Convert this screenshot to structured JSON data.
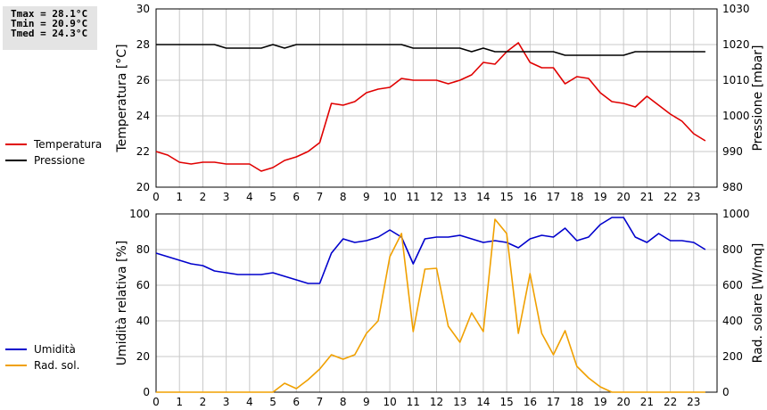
{
  "stats": {
    "tmax": "Tmax = 28.1°C",
    "tmin": "Tmin = 20.9°C",
    "tmed": "Tmed = 24.3°C"
  },
  "chart_data": [
    {
      "type": "line",
      "xlim": [
        0,
        24
      ],
      "xticks": [
        "0",
        "1",
        "2",
        "3",
        "4",
        "5",
        "6",
        "7",
        "8",
        "9",
        "10",
        "11",
        "12",
        "13",
        "14",
        "15",
        "16",
        "17",
        "18",
        "19",
        "20",
        "21",
        "22",
        "23"
      ],
      "ylabel": "Temperatura [°C]",
      "ylim": [
        20,
        30
      ],
      "yticks": [
        "20",
        "22",
        "24",
        "26",
        "28",
        "30"
      ],
      "y2label": "Pressione [mbar]",
      "y2lim": [
        980,
        1030
      ],
      "y2ticks": [
        "980",
        "990",
        "1000",
        "1010",
        "1020",
        "1030"
      ],
      "grid": true,
      "legend_position": "left",
      "series": [
        {
          "name": "Temperatura",
          "axis": "left",
          "color": "#e00000",
          "x": [
            0,
            0.5,
            1,
            1.5,
            2,
            2.5,
            3,
            3.5,
            4,
            4.5,
            5,
            5.5,
            6,
            6.5,
            7,
            7.5,
            8,
            8.5,
            9,
            9.5,
            10,
            10.5,
            11,
            11.5,
            12,
            12.5,
            13,
            13.5,
            14,
            14.5,
            15,
            15.5,
            16,
            16.5,
            17,
            17.5,
            18,
            18.5,
            19,
            19.5,
            20,
            20.5,
            21,
            21.5,
            22,
            22.5,
            23,
            23.5
          ],
          "y": [
            22.0,
            21.8,
            21.4,
            21.3,
            21.4,
            21.4,
            21.3,
            21.3,
            21.3,
            20.9,
            21.1,
            21.5,
            21.7,
            22.0,
            22.5,
            24.7,
            24.6,
            24.8,
            25.3,
            25.5,
            25.6,
            26.1,
            26.0,
            26.0,
            26.0,
            25.8,
            26.0,
            26.3,
            27.0,
            26.9,
            27.6,
            28.1,
            27.0,
            26.7,
            26.7,
            25.8,
            26.2,
            26.1,
            25.3,
            24.8,
            24.7,
            24.5,
            25.1,
            24.6,
            24.1,
            23.7,
            23.0,
            22.6
          ]
        },
        {
          "name": "Pressione",
          "axis": "right",
          "color": "#000000",
          "x": [
            0,
            0.5,
            1,
            1.5,
            2,
            2.5,
            3,
            3.5,
            4,
            4.5,
            5,
            5.5,
            6,
            6.5,
            7,
            7.5,
            8,
            8.5,
            9,
            9.5,
            10,
            10.5,
            11,
            11.5,
            12,
            12.5,
            13,
            13.5,
            14,
            14.5,
            15,
            15.5,
            16,
            16.5,
            17,
            17.5,
            18,
            18.5,
            19,
            19.5,
            20,
            20.5,
            21,
            21.5,
            22,
            22.5,
            23,
            23.5
          ],
          "y": [
            1020,
            1020,
            1020,
            1020,
            1020,
            1020,
            1019,
            1019,
            1019,
            1019,
            1020,
            1019,
            1020,
            1020,
            1020,
            1020,
            1020,
            1020,
            1020,
            1020,
            1020,
            1020,
            1019,
            1019,
            1019,
            1019,
            1019,
            1018,
            1019,
            1018,
            1018,
            1018,
            1018,
            1018,
            1018,
            1017,
            1017,
            1017,
            1017,
            1017,
            1017,
            1018,
            1018,
            1018,
            1018,
            1018,
            1018,
            1018
          ]
        }
      ]
    },
    {
      "type": "line",
      "xlim": [
        0,
        24
      ],
      "xticks": [
        "0",
        "1",
        "2",
        "3",
        "4",
        "5",
        "6",
        "7",
        "8",
        "9",
        "10",
        "11",
        "12",
        "13",
        "14",
        "15",
        "16",
        "17",
        "18",
        "19",
        "20",
        "21",
        "22",
        "23"
      ],
      "ylabel": "Umidità relativa [%]",
      "ylim": [
        0,
        100
      ],
      "yticks": [
        "0",
        "20",
        "40",
        "60",
        "80",
        "100"
      ],
      "y2label": "Rad. solare [W/mq]",
      "y2lim": [
        0,
        1000
      ],
      "y2ticks": [
        "0",
        "200",
        "400",
        "600",
        "800",
        "1000"
      ],
      "grid": true,
      "legend_position": "left",
      "series": [
        {
          "name": "Umidità",
          "axis": "left",
          "color": "#0000cc",
          "x": [
            0,
            0.5,
            1,
            1.5,
            2,
            2.5,
            3,
            3.5,
            4,
            4.5,
            5,
            5.5,
            6,
            6.5,
            7,
            7.5,
            8,
            8.5,
            9,
            9.5,
            10,
            10.5,
            11,
            11.5,
            12,
            12.5,
            13,
            13.5,
            14,
            14.5,
            15,
            15.5,
            16,
            16.5,
            17,
            17.5,
            18,
            18.5,
            19,
            19.5,
            20,
            20.5,
            21,
            21.5,
            22,
            22.5,
            23,
            23.5
          ],
          "y": [
            78,
            76,
            74,
            72,
            71,
            68,
            67,
            66,
            66,
            66,
            67,
            65,
            63,
            61,
            61,
            78,
            86,
            84,
            85,
            87,
            91,
            87,
            72,
            86,
            87,
            87,
            88,
            86,
            84,
            85,
            84,
            81,
            86,
            88,
            87,
            92,
            85,
            87,
            94,
            98,
            98,
            87,
            84,
            89,
            85,
            85,
            84,
            80
          ]
        },
        {
          "name": "Rad. sol.",
          "axis": "right",
          "color": "#f0a000",
          "x": [
            0,
            0.5,
            1,
            1.5,
            2,
            2.5,
            3,
            3.5,
            4,
            4.5,
            5,
            5.5,
            6,
            6.5,
            7,
            7.5,
            8,
            8.5,
            9,
            9.5,
            10,
            10.5,
            11,
            11.5,
            12,
            12.5,
            13,
            13.5,
            14,
            14.5,
            15,
            15.5,
            16,
            16.5,
            17,
            17.5,
            18,
            18.5,
            19,
            19.5,
            20,
            20.5,
            21,
            21.5,
            22,
            22.5,
            23,
            23.5
          ],
          "y": [
            0,
            0,
            0,
            0,
            0,
            0,
            0,
            0,
            0,
            0,
            0,
            50,
            20,
            70,
            130,
            210,
            185,
            210,
            330,
            400,
            760,
            890,
            340,
            690,
            695,
            370,
            280,
            445,
            340,
            970,
            890,
            330,
            665,
            330,
            210,
            345,
            145,
            80,
            30,
            0,
            0,
            0,
            0,
            0,
            0,
            0,
            0,
            0
          ]
        }
      ]
    }
  ]
}
